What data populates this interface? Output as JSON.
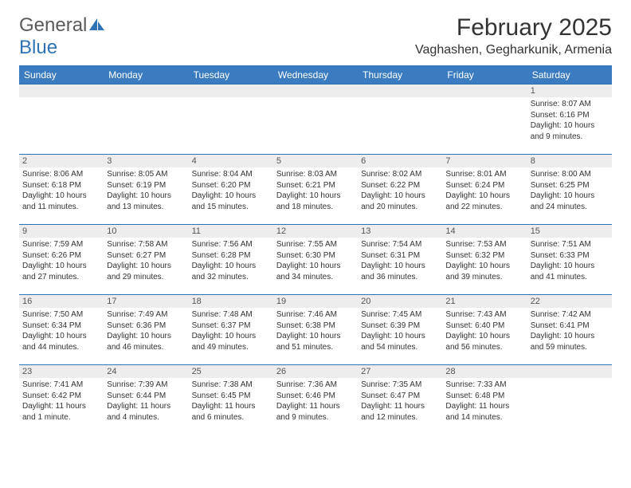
{
  "logo": {
    "text_general": "General",
    "text_blue": "Blue"
  },
  "title": {
    "month": "February 2025",
    "location": "Vaghashen, Gegharkunik, Armenia"
  },
  "colors": {
    "header_bg": "#3a7cbf",
    "header_text": "#ffffff",
    "daynum_bg": "#ededed",
    "border": "#2e74b5",
    "logo_gray": "#5a5a5a",
    "logo_blue": "#2e74b5",
    "body_text": "#333333"
  },
  "day_headers": [
    "Sunday",
    "Monday",
    "Tuesday",
    "Wednesday",
    "Thursday",
    "Friday",
    "Saturday"
  ],
  "weeks": [
    [
      {
        "n": "",
        "sunrise": "",
        "sunset": "",
        "daylight": ""
      },
      {
        "n": "",
        "sunrise": "",
        "sunset": "",
        "daylight": ""
      },
      {
        "n": "",
        "sunrise": "",
        "sunset": "",
        "daylight": ""
      },
      {
        "n": "",
        "sunrise": "",
        "sunset": "",
        "daylight": ""
      },
      {
        "n": "",
        "sunrise": "",
        "sunset": "",
        "daylight": ""
      },
      {
        "n": "",
        "sunrise": "",
        "sunset": "",
        "daylight": ""
      },
      {
        "n": "1",
        "sunrise": "Sunrise: 8:07 AM",
        "sunset": "Sunset: 6:16 PM",
        "daylight": "Daylight: 10 hours and 9 minutes."
      }
    ],
    [
      {
        "n": "2",
        "sunrise": "Sunrise: 8:06 AM",
        "sunset": "Sunset: 6:18 PM",
        "daylight": "Daylight: 10 hours and 11 minutes."
      },
      {
        "n": "3",
        "sunrise": "Sunrise: 8:05 AM",
        "sunset": "Sunset: 6:19 PM",
        "daylight": "Daylight: 10 hours and 13 minutes."
      },
      {
        "n": "4",
        "sunrise": "Sunrise: 8:04 AM",
        "sunset": "Sunset: 6:20 PM",
        "daylight": "Daylight: 10 hours and 15 minutes."
      },
      {
        "n": "5",
        "sunrise": "Sunrise: 8:03 AM",
        "sunset": "Sunset: 6:21 PM",
        "daylight": "Daylight: 10 hours and 18 minutes."
      },
      {
        "n": "6",
        "sunrise": "Sunrise: 8:02 AM",
        "sunset": "Sunset: 6:22 PM",
        "daylight": "Daylight: 10 hours and 20 minutes."
      },
      {
        "n": "7",
        "sunrise": "Sunrise: 8:01 AM",
        "sunset": "Sunset: 6:24 PM",
        "daylight": "Daylight: 10 hours and 22 minutes."
      },
      {
        "n": "8",
        "sunrise": "Sunrise: 8:00 AM",
        "sunset": "Sunset: 6:25 PM",
        "daylight": "Daylight: 10 hours and 24 minutes."
      }
    ],
    [
      {
        "n": "9",
        "sunrise": "Sunrise: 7:59 AM",
        "sunset": "Sunset: 6:26 PM",
        "daylight": "Daylight: 10 hours and 27 minutes."
      },
      {
        "n": "10",
        "sunrise": "Sunrise: 7:58 AM",
        "sunset": "Sunset: 6:27 PM",
        "daylight": "Daylight: 10 hours and 29 minutes."
      },
      {
        "n": "11",
        "sunrise": "Sunrise: 7:56 AM",
        "sunset": "Sunset: 6:28 PM",
        "daylight": "Daylight: 10 hours and 32 minutes."
      },
      {
        "n": "12",
        "sunrise": "Sunrise: 7:55 AM",
        "sunset": "Sunset: 6:30 PM",
        "daylight": "Daylight: 10 hours and 34 minutes."
      },
      {
        "n": "13",
        "sunrise": "Sunrise: 7:54 AM",
        "sunset": "Sunset: 6:31 PM",
        "daylight": "Daylight: 10 hours and 36 minutes."
      },
      {
        "n": "14",
        "sunrise": "Sunrise: 7:53 AM",
        "sunset": "Sunset: 6:32 PM",
        "daylight": "Daylight: 10 hours and 39 minutes."
      },
      {
        "n": "15",
        "sunrise": "Sunrise: 7:51 AM",
        "sunset": "Sunset: 6:33 PM",
        "daylight": "Daylight: 10 hours and 41 minutes."
      }
    ],
    [
      {
        "n": "16",
        "sunrise": "Sunrise: 7:50 AM",
        "sunset": "Sunset: 6:34 PM",
        "daylight": "Daylight: 10 hours and 44 minutes."
      },
      {
        "n": "17",
        "sunrise": "Sunrise: 7:49 AM",
        "sunset": "Sunset: 6:36 PM",
        "daylight": "Daylight: 10 hours and 46 minutes."
      },
      {
        "n": "18",
        "sunrise": "Sunrise: 7:48 AM",
        "sunset": "Sunset: 6:37 PM",
        "daylight": "Daylight: 10 hours and 49 minutes."
      },
      {
        "n": "19",
        "sunrise": "Sunrise: 7:46 AM",
        "sunset": "Sunset: 6:38 PM",
        "daylight": "Daylight: 10 hours and 51 minutes."
      },
      {
        "n": "20",
        "sunrise": "Sunrise: 7:45 AM",
        "sunset": "Sunset: 6:39 PM",
        "daylight": "Daylight: 10 hours and 54 minutes."
      },
      {
        "n": "21",
        "sunrise": "Sunrise: 7:43 AM",
        "sunset": "Sunset: 6:40 PM",
        "daylight": "Daylight: 10 hours and 56 minutes."
      },
      {
        "n": "22",
        "sunrise": "Sunrise: 7:42 AM",
        "sunset": "Sunset: 6:41 PM",
        "daylight": "Daylight: 10 hours and 59 minutes."
      }
    ],
    [
      {
        "n": "23",
        "sunrise": "Sunrise: 7:41 AM",
        "sunset": "Sunset: 6:42 PM",
        "daylight": "Daylight: 11 hours and 1 minute."
      },
      {
        "n": "24",
        "sunrise": "Sunrise: 7:39 AM",
        "sunset": "Sunset: 6:44 PM",
        "daylight": "Daylight: 11 hours and 4 minutes."
      },
      {
        "n": "25",
        "sunrise": "Sunrise: 7:38 AM",
        "sunset": "Sunset: 6:45 PM",
        "daylight": "Daylight: 11 hours and 6 minutes."
      },
      {
        "n": "26",
        "sunrise": "Sunrise: 7:36 AM",
        "sunset": "Sunset: 6:46 PM",
        "daylight": "Daylight: 11 hours and 9 minutes."
      },
      {
        "n": "27",
        "sunrise": "Sunrise: 7:35 AM",
        "sunset": "Sunset: 6:47 PM",
        "daylight": "Daylight: 11 hours and 12 minutes."
      },
      {
        "n": "28",
        "sunrise": "Sunrise: 7:33 AM",
        "sunset": "Sunset: 6:48 PM",
        "daylight": "Daylight: 11 hours and 14 minutes."
      },
      {
        "n": "",
        "sunrise": "",
        "sunset": "",
        "daylight": ""
      }
    ]
  ]
}
